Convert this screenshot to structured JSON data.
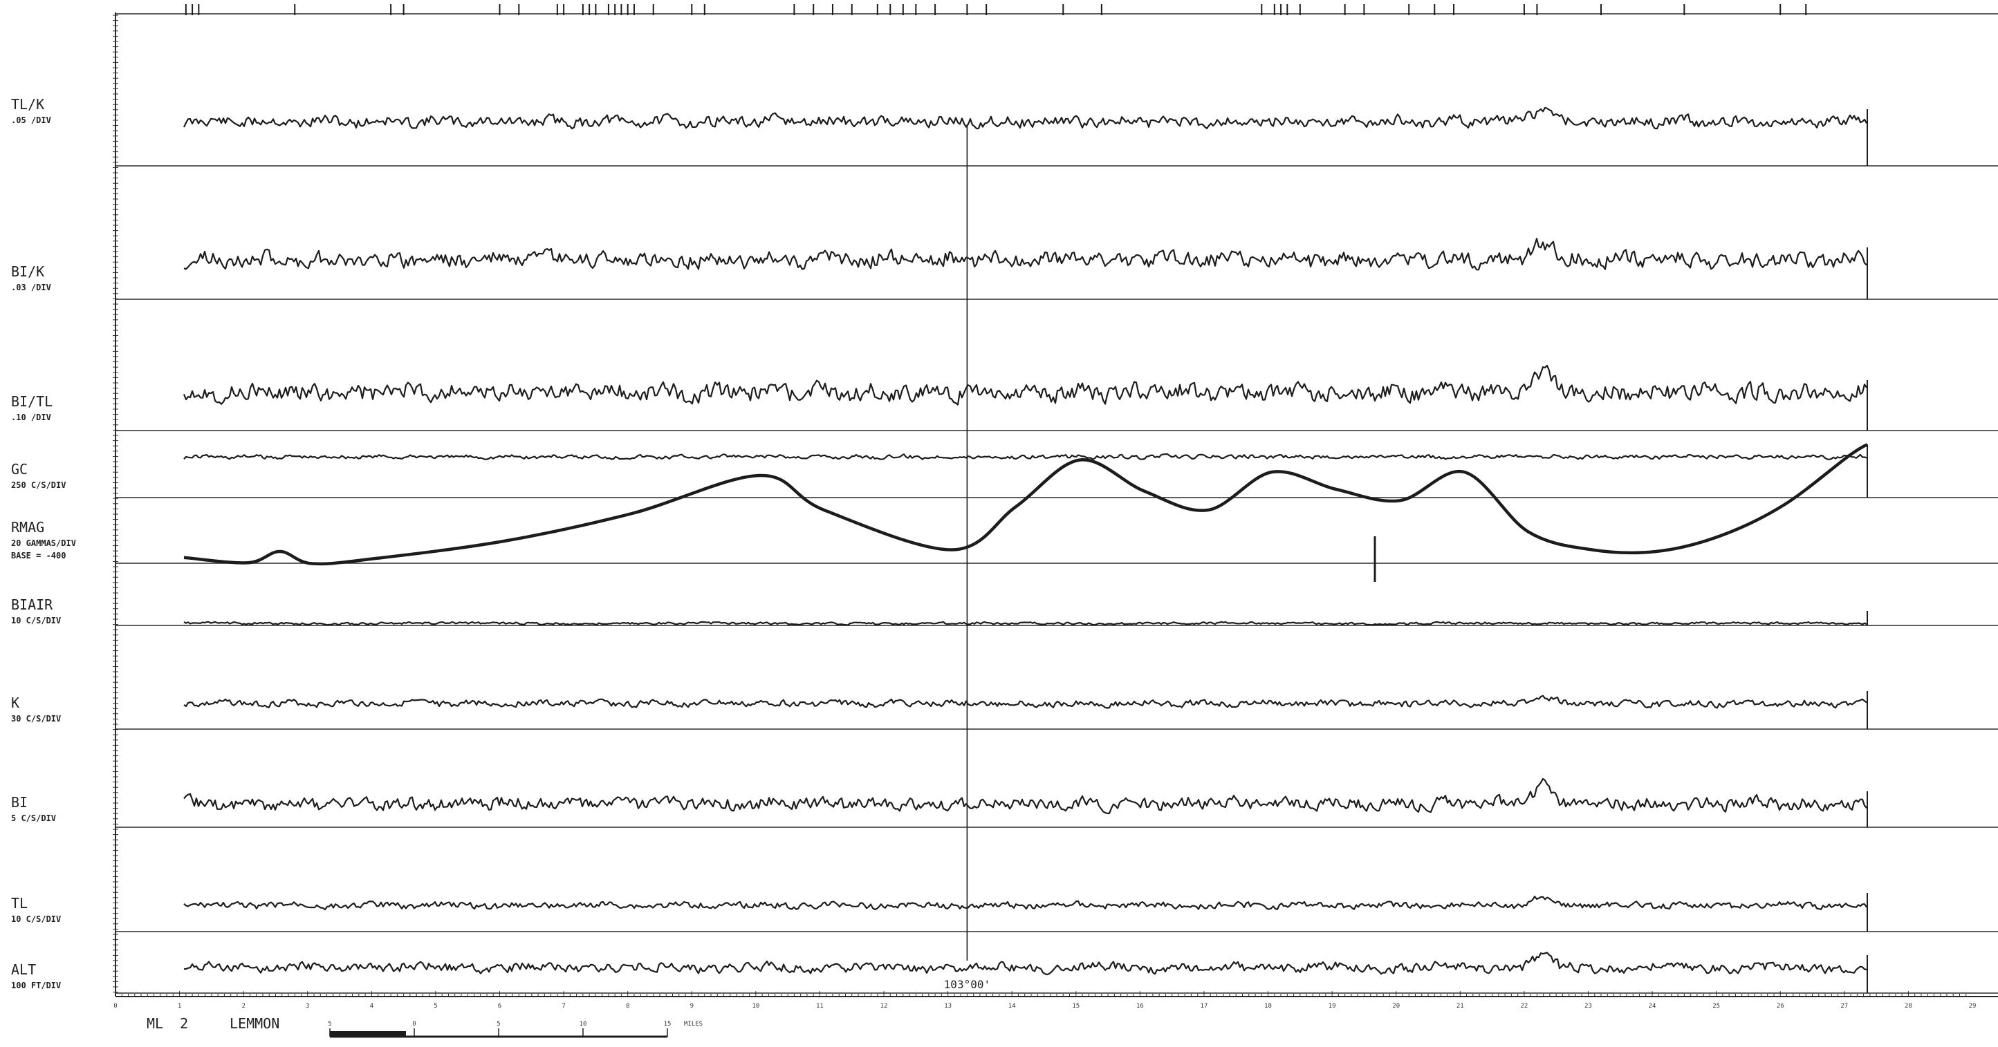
{
  "chart_data": {
    "type": "line",
    "title": "",
    "channels": [
      {
        "name": "TL/K",
        "scale": ".05 /DIV",
        "style": "noise",
        "amp": 7,
        "period": 13,
        "seed": 11
      },
      {
        "name": "BI/K",
        "scale": ".03 /DIV",
        "style": "noise",
        "amp": 10,
        "period": 13,
        "seed": 23
      },
      {
        "name": "BI/TL",
        "scale": ".10 /DIV",
        "style": "noise",
        "amp": 11,
        "period": 12,
        "seed": 37
      },
      {
        "name": "GC",
        "scale": "250 C/S/DIV",
        "style": "noise",
        "amp": 2.5,
        "period": 10,
        "seed": 41
      },
      {
        "name": "RMAG",
        "scale": "20 GAMMAS/DIV",
        "scale2": "BASE = -400",
        "style": "mag"
      },
      {
        "name": "BIAIR",
        "scale": "10 C/S/DIV",
        "style": "noise",
        "amp": 1.5,
        "period": 60,
        "seed": 53
      },
      {
        "name": "K",
        "scale": "30 C/S/DIV",
        "style": "noise",
        "amp": 4,
        "period": 14,
        "seed": 67
      },
      {
        "name": "BI",
        "scale": "5 C/S/DIV",
        "style": "noise",
        "amp": 8,
        "period": 12,
        "seed": 71
      },
      {
        "name": "TL",
        "scale": "10 C/S/DIV",
        "style": "noise",
        "amp": 4,
        "period": 18,
        "seed": 83
      },
      {
        "name": "ALT",
        "scale": "100 FT/DIV",
        "style": "noise",
        "amp": 6,
        "period": 26,
        "seed": 97
      }
    ],
    "rmag_curve": {
      "x": [
        0,
        1,
        1.5,
        2,
        3,
        5,
        7,
        9,
        10,
        12,
        13,
        14,
        15,
        16,
        17,
        18,
        19,
        20,
        21,
        22,
        23,
        24,
        25,
        26,
        26.3
      ],
      "y": [
        0.9,
        0.3,
        1.6,
        0.2,
        0.8,
        2.8,
        6.0,
        10.4,
        6.4,
        1.8,
        6.8,
        12.2,
        8.6,
        6.4,
        10.8,
        8.8,
        7.5,
        10.8,
        3.9,
        1.8,
        1.6,
        3.4,
        7.0,
        12.6,
        14.0
      ]
    },
    "x_axis": {
      "ticks": [
        "0",
        "1",
        "2",
        "3",
        "4",
        "5",
        "6",
        "7",
        "8",
        "9",
        "10",
        "11",
        "12",
        "13",
        "14",
        "15",
        "16",
        "17",
        "18",
        "19",
        "20",
        "21",
        "22",
        "23",
        "24",
        "25",
        "26",
        "27",
        "28",
        "29"
      ],
      "range": [
        0,
        29
      ]
    },
    "longitude_marker": {
      "x": 13.3,
      "label": "103°00'"
    },
    "event_marks_top": [
      1.1,
      1.2,
      1.3,
      2.8,
      4.3,
      4.5,
      6.0,
      6.3,
      6.9,
      7.0,
      7.3,
      7.4,
      7.5,
      7.7,
      7.8,
      7.9,
      8.0,
      8.1,
      8.4,
      9.0,
      9.2,
      10.6,
      10.9,
      11.2,
      11.5,
      11.9,
      12.1,
      12.3,
      12.5,
      12.8,
      13.3,
      13.6,
      14.8,
      15.4,
      17.9,
      18.1,
      18.2,
      18.3,
      18.5,
      19.2,
      19.5,
      20.2,
      20.6,
      20.9,
      22.0,
      22.2,
      23.2,
      24.5,
      26.0,
      26.4
    ]
  },
  "footer": {
    "line_label": "ML  2",
    "location": "LEMMON",
    "scale_bar_ticks": [
      "5",
      "0",
      "5",
      "10",
      "15"
    ],
    "scale_bar_units": "MILES"
  }
}
